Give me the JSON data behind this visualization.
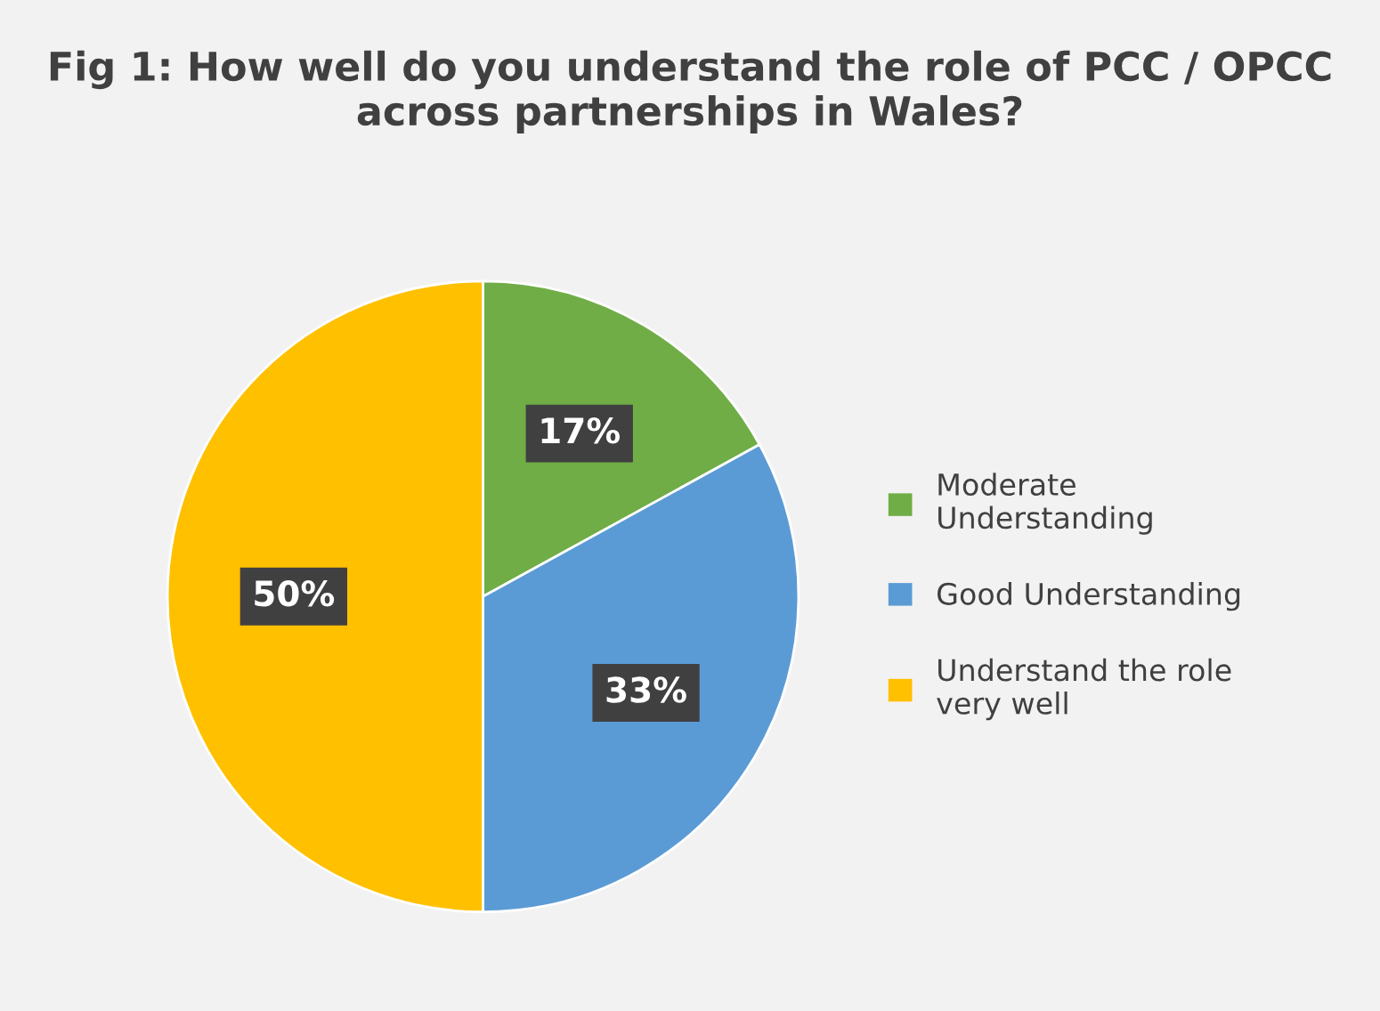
{
  "chart_data": {
    "type": "pie",
    "title": "Fig 1: How well do you understand the role of PCC / OPCC across partnerships in Wales?",
    "categories": [
      "Moderate Understanding",
      "Good Understanding",
      "Understand the role very well"
    ],
    "values": [
      17,
      33,
      50
    ],
    "colors": [
      "#70ad47",
      "#5b9bd5",
      "#ffc000"
    ],
    "value_labels": [
      "17%",
      "33%",
      "50%"
    ],
    "legend": "right"
  }
}
